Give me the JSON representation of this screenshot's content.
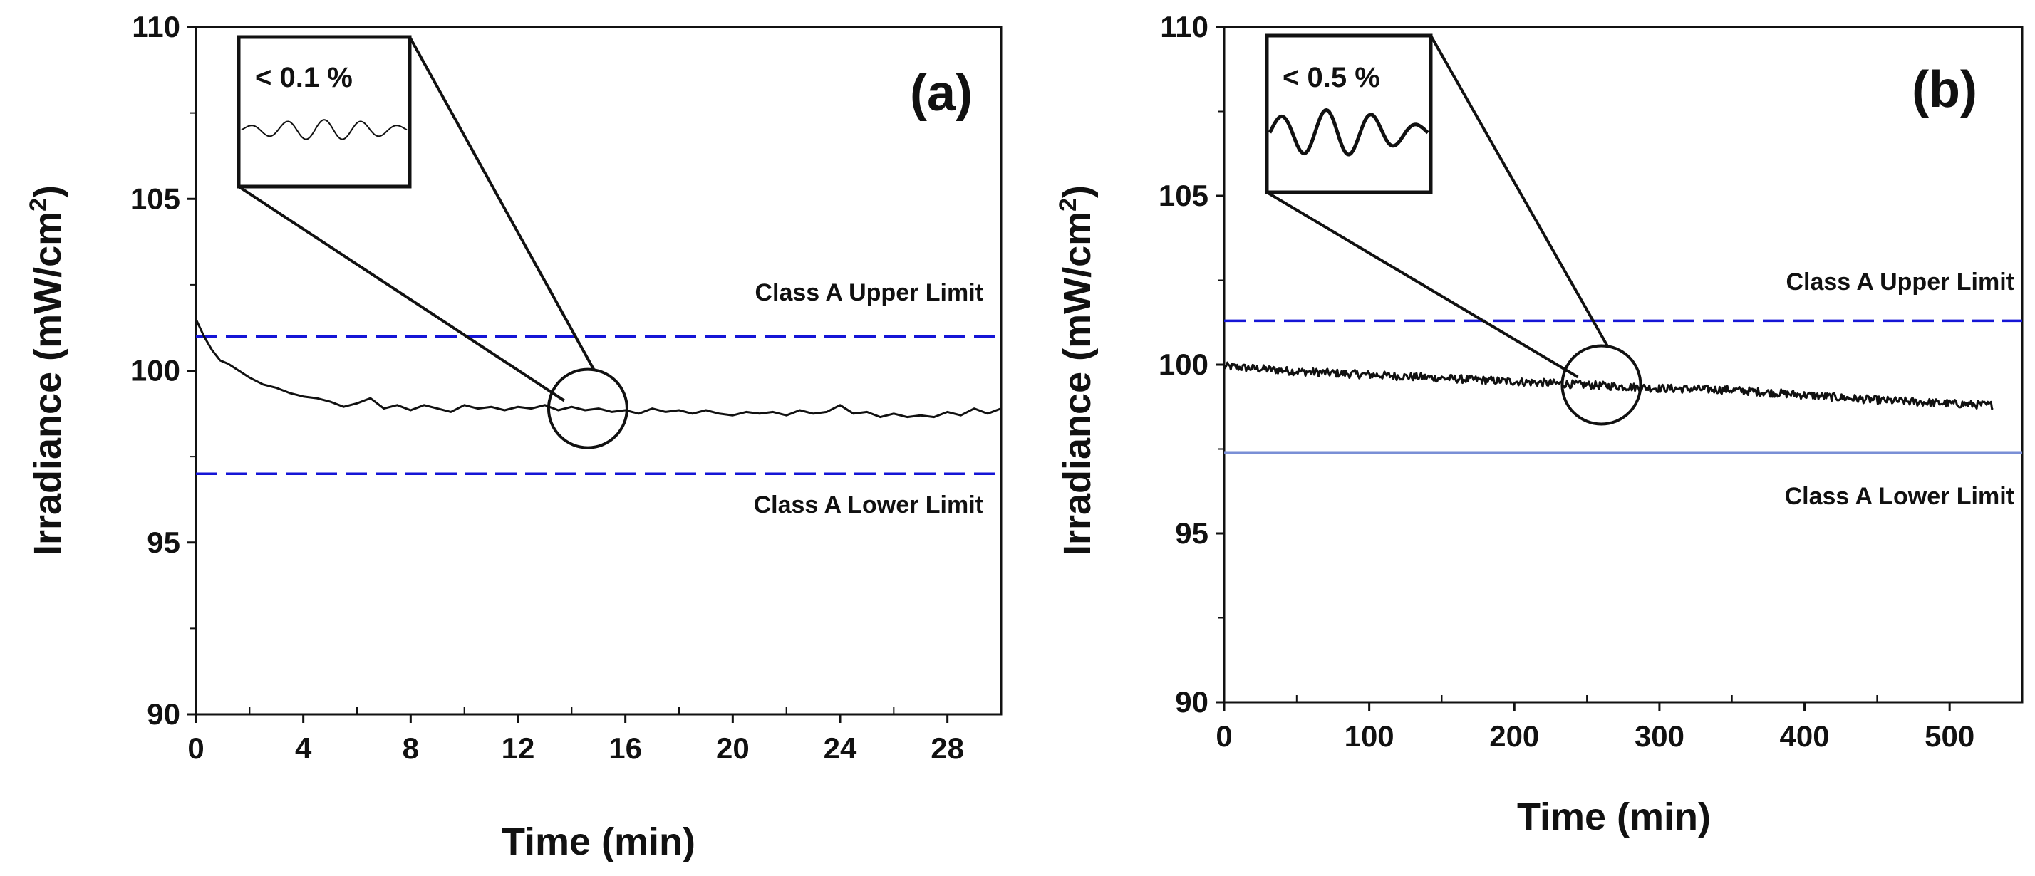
{
  "chart_data": [
    {
      "type": "line",
      "panel_label": "(a)",
      "xlabel": "Time (min)",
      "ylabel": "Irradiance (mW/cm",
      "ylabel_sup": "2",
      "ylabel_close": ")",
      "xlim": [
        0,
        30
      ],
      "ylim": [
        90,
        110
      ],
      "xticks": [
        0,
        4,
        8,
        12,
        16,
        20,
        24,
        28
      ],
      "yticks": [
        90,
        95,
        100,
        105,
        110
      ],
      "upper_limit": {
        "value": 101,
        "label": "Class A Upper Limit",
        "color": "#1515d6"
      },
      "lower_limit": {
        "value": 97,
        "label": "Class A Lower Limit",
        "color": "#1515d6"
      },
      "inset_label": "< 0.1 %",
      "zoom_center": {
        "x": 14.6,
        "y": 98.9
      },
      "series": [
        {
          "name": "Irradiance",
          "color": "#111111",
          "x": [
            0,
            0.3,
            0.6,
            0.9,
            1.2,
            1.6,
            2.0,
            2.5,
            3.0,
            3.5,
            4.0,
            4.5,
            5.0,
            5.5,
            6.0,
            6.5,
            7.0,
            7.5,
            8.0,
            8.5,
            9.0,
            9.5,
            10.0,
            10.5,
            11.0,
            11.5,
            12.0,
            12.5,
            13.0,
            13.5,
            14.0,
            14.5,
            15.0,
            15.5,
            16.0,
            16.5,
            17.0,
            17.5,
            18.0,
            18.5,
            19.0,
            19.5,
            20.0,
            20.5,
            21.0,
            21.5,
            22.0,
            22.5,
            23.0,
            23.5,
            24.0,
            24.5,
            25.0,
            25.5,
            26.0,
            26.5,
            27.0,
            27.5,
            28.0,
            28.5,
            29.0,
            29.5,
            30.0
          ],
          "y": [
            101.5,
            101.0,
            100.6,
            100.3,
            100.2,
            100.0,
            99.8,
            99.6,
            99.5,
            99.35,
            99.25,
            99.2,
            99.1,
            98.95,
            99.05,
            99.2,
            98.9,
            99.0,
            98.85,
            99.0,
            98.9,
            98.8,
            99.0,
            98.9,
            98.95,
            98.85,
            98.95,
            98.9,
            99.0,
            98.85,
            98.95,
            98.85,
            98.9,
            98.8,
            98.85,
            98.75,
            98.9,
            98.8,
            98.85,
            98.75,
            98.85,
            98.75,
            98.7,
            98.8,
            98.75,
            98.8,
            98.7,
            98.85,
            98.75,
            98.8,
            99.0,
            98.75,
            98.8,
            98.65,
            98.75,
            98.65,
            98.7,
            98.65,
            98.8,
            98.7,
            98.9,
            98.75,
            98.9
          ]
        }
      ]
    },
    {
      "type": "line",
      "panel_label": "(b)",
      "xlabel": "Time (min)",
      "ylabel": "Irradiance (mW/cm",
      "ylabel_sup": "2",
      "ylabel_close": ")",
      "xlim": [
        0,
        550
      ],
      "ylim": [
        90,
        110
      ],
      "xticks": [
        0,
        100,
        200,
        300,
        400,
        500
      ],
      "yticks": [
        90,
        95,
        100,
        105,
        110
      ],
      "upper_limit": {
        "value": 101.3,
        "label": "Class A Upper Limit",
        "color": "#1515d6"
      },
      "lower_limit": {
        "value": 97.4,
        "label": "Class A Lower Limit",
        "color": "#7a8fd6"
      },
      "inset_label": "< 0.5 %",
      "zoom_center": {
        "x": 260,
        "y": 99.4
      },
      "series": [
        {
          "name": "Irradiance",
          "color": "#111111",
          "x_start": 0,
          "x_end": 530,
          "trend": [
            [
              0,
              99.95
            ],
            [
              50,
              99.8
            ],
            [
              100,
              99.7
            ],
            [
              150,
              99.6
            ],
            [
              200,
              99.5
            ],
            [
              250,
              99.4
            ],
            [
              300,
              99.3
            ],
            [
              350,
              99.25
            ],
            [
              400,
              99.1
            ],
            [
              450,
              98.95
            ],
            [
              500,
              98.85
            ],
            [
              530,
              98.8
            ]
          ],
          "noise_amplitude": 0.12
        }
      ]
    }
  ]
}
